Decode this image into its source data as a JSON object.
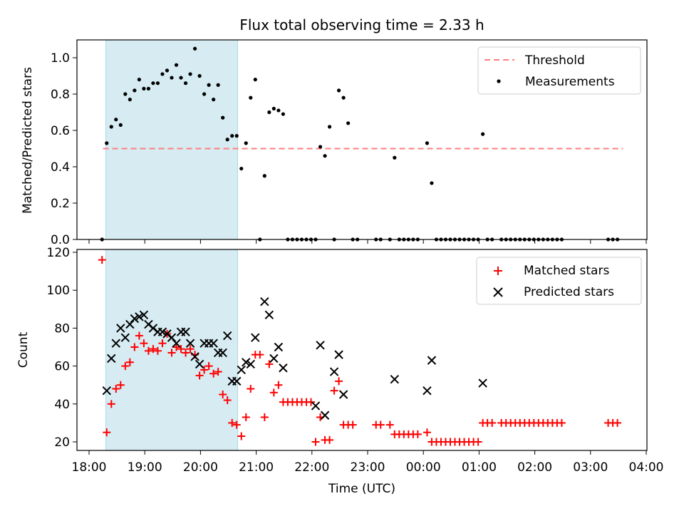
{
  "chart_data": [
    {
      "type": "scatter",
      "title": "Flux total observing time = 2.33 h",
      "xlabel": "",
      "ylabel": "Matched/Predicted stars",
      "xlim": [
        "18:00",
        "04:00"
      ],
      "ylim": [
        0,
        1.1
      ],
      "yticks": [
        "0.0",
        "0.2",
        "0.4",
        "0.6",
        "0.8",
        "1.0"
      ],
      "grid": false,
      "legend_position": "top-right",
      "shaded_interval": [
        "18:18",
        "20:40"
      ],
      "series": [
        {
          "name": "Threshold",
          "type": "line",
          "style": "dashed",
          "color": "#ff7f7f",
          "points": [
            [
              "18:15",
              0.5
            ],
            [
              "03:35",
              0.5
            ]
          ]
        },
        {
          "name": "Measurements",
          "type": "scatter",
          "color": "#000000",
          "points": [
            [
              "18:14",
              0.0
            ],
            [
              "18:19",
              0.53
            ],
            [
              "18:24",
              0.62
            ],
            [
              "18:29",
              0.66
            ],
            [
              "18:34",
              0.63
            ],
            [
              "18:39",
              0.8
            ],
            [
              "18:44",
              0.77
            ],
            [
              "18:49",
              0.82
            ],
            [
              "18:54",
              0.88
            ],
            [
              "18:59",
              0.83
            ],
            [
              "19:04",
              0.83
            ],
            [
              "19:09",
              0.86
            ],
            [
              "19:14",
              0.86
            ],
            [
              "19:19",
              0.91
            ],
            [
              "19:24",
              0.93
            ],
            [
              "19:29",
              0.89
            ],
            [
              "19:34",
              0.96
            ],
            [
              "19:39",
              0.89
            ],
            [
              "19:44",
              0.86
            ],
            [
              "19:49",
              0.91
            ],
            [
              "19:54",
              1.05
            ],
            [
              "19:59",
              0.9
            ],
            [
              "20:04",
              0.8
            ],
            [
              "20:09",
              0.85
            ],
            [
              "20:14",
              0.77
            ],
            [
              "20:19",
              0.85
            ],
            [
              "20:24",
              0.67
            ],
            [
              "20:29",
              0.55
            ],
            [
              "20:34",
              0.57
            ],
            [
              "20:39",
              0.57
            ],
            [
              "20:44",
              0.39
            ],
            [
              "20:49",
              0.53
            ],
            [
              "20:54",
              0.78
            ],
            [
              "20:59",
              0.88
            ],
            [
              "21:04",
              0.0
            ],
            [
              "21:09",
              0.35
            ],
            [
              "21:14",
              0.7
            ],
            [
              "21:19",
              0.72
            ],
            [
              "21:24",
              0.71
            ],
            [
              "21:29",
              0.69
            ],
            [
              "21:34",
              0.0
            ],
            [
              "21:39",
              0.0
            ],
            [
              "21:44",
              0.0
            ],
            [
              "21:49",
              0.0
            ],
            [
              "21:54",
              0.0
            ],
            [
              "21:59",
              0.0
            ],
            [
              "22:04",
              0.0
            ],
            [
              "22:09",
              0.51
            ],
            [
              "22:14",
              0.46
            ],
            [
              "22:19",
              0.62
            ],
            [
              "22:24",
              0.0
            ],
            [
              "22:29",
              0.82
            ],
            [
              "22:34",
              0.78
            ],
            [
              "22:39",
              0.64
            ],
            [
              "22:44",
              0.0
            ],
            [
              "22:49",
              0.0
            ],
            [
              "23:09",
              0.0
            ],
            [
              "23:14",
              0.0
            ],
            [
              "23:24",
              0.0
            ],
            [
              "23:29",
              0.45
            ],
            [
              "23:34",
              0.0
            ],
            [
              "23:39",
              0.0
            ],
            [
              "23:44",
              0.0
            ],
            [
              "23:49",
              0.0
            ],
            [
              "23:54",
              0.0
            ],
            [
              "00:04",
              0.53
            ],
            [
              "00:09",
              0.31
            ],
            [
              "00:14",
              0.0
            ],
            [
              "00:19",
              0.0
            ],
            [
              "00:24",
              0.0
            ],
            [
              "00:29",
              0.0
            ],
            [
              "00:34",
              0.0
            ],
            [
              "00:39",
              0.0
            ],
            [
              "00:44",
              0.0
            ],
            [
              "00:49",
              0.0
            ],
            [
              "00:54",
              0.0
            ],
            [
              "00:59",
              0.0
            ],
            [
              "01:04",
              0.58
            ],
            [
              "01:09",
              0.0
            ],
            [
              "01:14",
              0.0
            ],
            [
              "01:24",
              0.0
            ],
            [
              "01:29",
              0.0
            ],
            [
              "01:34",
              0.0
            ],
            [
              "01:39",
              0.0
            ],
            [
              "01:44",
              0.0
            ],
            [
              "01:49",
              0.0
            ],
            [
              "01:54",
              0.0
            ],
            [
              "01:59",
              0.0
            ],
            [
              "02:04",
              0.0
            ],
            [
              "02:09",
              0.0
            ],
            [
              "02:14",
              0.0
            ],
            [
              "02:19",
              0.0
            ],
            [
              "02:24",
              0.0
            ],
            [
              "02:29",
              0.0
            ],
            [
              "03:19",
              0.0
            ],
            [
              "03:24",
              0.0
            ],
            [
              "03:29",
              0.0
            ]
          ]
        }
      ]
    },
    {
      "type": "scatter",
      "title": "",
      "xlabel": "Time (UTC)",
      "ylabel": "Count",
      "xlim": [
        "18:00",
        "04:00"
      ],
      "ylim": [
        15,
        122
      ],
      "yticks": [
        "20",
        "40",
        "60",
        "80",
        "100",
        "120"
      ],
      "xticks": [
        "18:00",
        "19:00",
        "20:00",
        "21:00",
        "22:00",
        "23:00",
        "00:00",
        "01:00",
        "02:00",
        "03:00",
        "04:00"
      ],
      "grid": false,
      "legend_position": "top-right",
      "shaded_interval": [
        "18:18",
        "20:40"
      ],
      "series": [
        {
          "name": "Matched stars",
          "type": "scatter",
          "marker": "plus",
          "color": "#ff0000",
          "points": [
            [
              "18:14",
              116
            ],
            [
              "18:19",
              25
            ],
            [
              "18:24",
              40
            ],
            [
              "18:29",
              48
            ],
            [
              "18:34",
              50
            ],
            [
              "18:39",
              60
            ],
            [
              "18:44",
              62
            ],
            [
              "18:49",
              70
            ],
            [
              "18:54",
              76
            ],
            [
              "18:59",
              72
            ],
            [
              "19:04",
              68
            ],
            [
              "19:09",
              69
            ],
            [
              "19:14",
              68
            ],
            [
              "19:19",
              72
            ],
            [
              "19:24",
              77
            ],
            [
              "19:29",
              67
            ],
            [
              "19:34",
              70
            ],
            [
              "19:39",
              69
            ],
            [
              "19:44",
              67
            ],
            [
              "19:49",
              69
            ],
            [
              "19:54",
              66
            ],
            [
              "19:59",
              55
            ],
            [
              "20:04",
              58
            ],
            [
              "20:09",
              60
            ],
            [
              "20:14",
              56
            ],
            [
              "20:19",
              57
            ],
            [
              "20:24",
              45
            ],
            [
              "20:29",
              42
            ],
            [
              "20:34",
              30
            ],
            [
              "20:39",
              29
            ],
            [
              "20:44",
              23
            ],
            [
              "20:49",
              33
            ],
            [
              "20:54",
              48
            ],
            [
              "20:59",
              66
            ],
            [
              "21:04",
              66
            ],
            [
              "21:09",
              33
            ],
            [
              "21:14",
              61
            ],
            [
              "21:19",
              46
            ],
            [
              "21:24",
              50
            ],
            [
              "21:29",
              41
            ],
            [
              "21:34",
              41
            ],
            [
              "21:39",
              41
            ],
            [
              "21:44",
              41
            ],
            [
              "21:49",
              41
            ],
            [
              "21:54",
              41
            ],
            [
              "21:59",
              41
            ],
            [
              "22:04",
              20
            ],
            [
              "22:09",
              33
            ],
            [
              "22:14",
              21
            ],
            [
              "22:19",
              21
            ],
            [
              "22:24",
              47
            ],
            [
              "22:29",
              52
            ],
            [
              "22:34",
              29
            ],
            [
              "22:39",
              29
            ],
            [
              "22:44",
              29
            ],
            [
              "23:09",
              29
            ],
            [
              "23:14",
              29
            ],
            [
              "23:24",
              29
            ],
            [
              "23:29",
              24
            ],
            [
              "23:34",
              24
            ],
            [
              "23:39",
              24
            ],
            [
              "23:44",
              24
            ],
            [
              "23:49",
              24
            ],
            [
              "23:54",
              24
            ],
            [
              "00:04",
              25
            ],
            [
              "00:09",
              20
            ],
            [
              "00:14",
              20
            ],
            [
              "00:19",
              20
            ],
            [
              "00:24",
              20
            ],
            [
              "00:29",
              20
            ],
            [
              "00:34",
              20
            ],
            [
              "00:39",
              20
            ],
            [
              "00:44",
              20
            ],
            [
              "00:49",
              20
            ],
            [
              "00:54",
              20
            ],
            [
              "00:59",
              20
            ],
            [
              "01:04",
              30
            ],
            [
              "01:09",
              30
            ],
            [
              "01:14",
              30
            ],
            [
              "01:24",
              30
            ],
            [
              "01:29",
              30
            ],
            [
              "01:34",
              30
            ],
            [
              "01:39",
              30
            ],
            [
              "01:44",
              30
            ],
            [
              "01:49",
              30
            ],
            [
              "01:54",
              30
            ],
            [
              "01:59",
              30
            ],
            [
              "02:04",
              30
            ],
            [
              "02:09",
              30
            ],
            [
              "02:14",
              30
            ],
            [
              "02:19",
              30
            ],
            [
              "02:24",
              30
            ],
            [
              "02:29",
              30
            ],
            [
              "03:19",
              30
            ],
            [
              "03:24",
              30
            ],
            [
              "03:29",
              30
            ]
          ]
        },
        {
          "name": "Predicted stars",
          "type": "scatter",
          "marker": "x",
          "color": "#000000",
          "points": [
            [
              "18:19",
              47
            ],
            [
              "18:24",
              64
            ],
            [
              "18:29",
              72
            ],
            [
              "18:34",
              80
            ],
            [
              "18:39",
              75
            ],
            [
              "18:44",
              82
            ],
            [
              "18:49",
              85
            ],
            [
              "18:54",
              86
            ],
            [
              "18:59",
              87
            ],
            [
              "19:04",
              82
            ],
            [
              "19:09",
              80
            ],
            [
              "19:14",
              78
            ],
            [
              "19:19",
              78
            ],
            [
              "19:24",
              77
            ],
            [
              "19:29",
              75
            ],
            [
              "19:34",
              72
            ],
            [
              "19:39",
              78
            ],
            [
              "19:44",
              78
            ],
            [
              "19:49",
              72
            ],
            [
              "19:54",
              65
            ],
            [
              "19:59",
              61
            ],
            [
              "20:04",
              72
            ],
            [
              "20:09",
              72
            ],
            [
              "20:14",
              72
            ],
            [
              "20:19",
              67
            ],
            [
              "20:24",
              67
            ],
            [
              "20:29",
              76
            ],
            [
              "20:34",
              52
            ],
            [
              "20:39",
              52
            ],
            [
              "20:44",
              58
            ],
            [
              "20:49",
              62
            ],
            [
              "20:54",
              61
            ],
            [
              "20:59",
              75
            ],
            [
              "21:09",
              94
            ],
            [
              "21:14",
              87
            ],
            [
              "21:19",
              64
            ],
            [
              "21:24",
              70
            ],
            [
              "21:29",
              59
            ],
            [
              "22:04",
              39
            ],
            [
              "22:09",
              71
            ],
            [
              "22:14",
              34
            ],
            [
              "22:24",
              57
            ],
            [
              "22:29",
              66
            ],
            [
              "22:34",
              45
            ],
            [
              "23:29",
              53
            ],
            [
              "00:04",
              47
            ],
            [
              "00:09",
              63
            ],
            [
              "01:04",
              51
            ]
          ]
        }
      ]
    }
  ]
}
